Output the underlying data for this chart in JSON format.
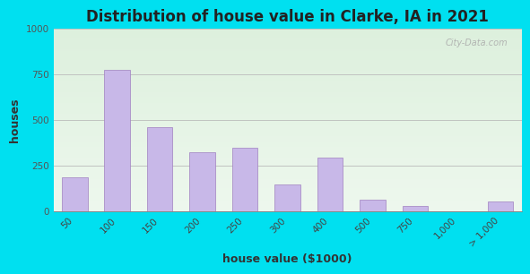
{
  "title": "Distribution of house value in Clarke, IA in 2021",
  "xlabel": "house value ($1000)",
  "ylabel": "houses",
  "bar_labels": [
    "50",
    "100",
    "150",
    "200",
    "250",
    "300",
    "400",
    "500",
    "750",
    "1,000",
    "> 1,000"
  ],
  "bar_values": [
    185,
    775,
    460,
    325,
    350,
    150,
    295,
    65,
    30,
    0,
    55
  ],
  "bar_color": "#c8b8e8",
  "bar_edge_color": "#a080c0",
  "bg_outer": "#00e0f0",
  "bg_plot_top": "#ddf0dd",
  "bg_plot_bottom": "#eef8ee",
  "grid_color": "#bbbbbb",
  "title_fontsize": 12,
  "label_fontsize": 9,
  "tick_fontsize": 7.5,
  "ylim": [
    0,
    1000
  ],
  "yticks": [
    0,
    250,
    500,
    750,
    1000
  ],
  "watermark": "City-Data.com",
  "bar_width": 0.6
}
